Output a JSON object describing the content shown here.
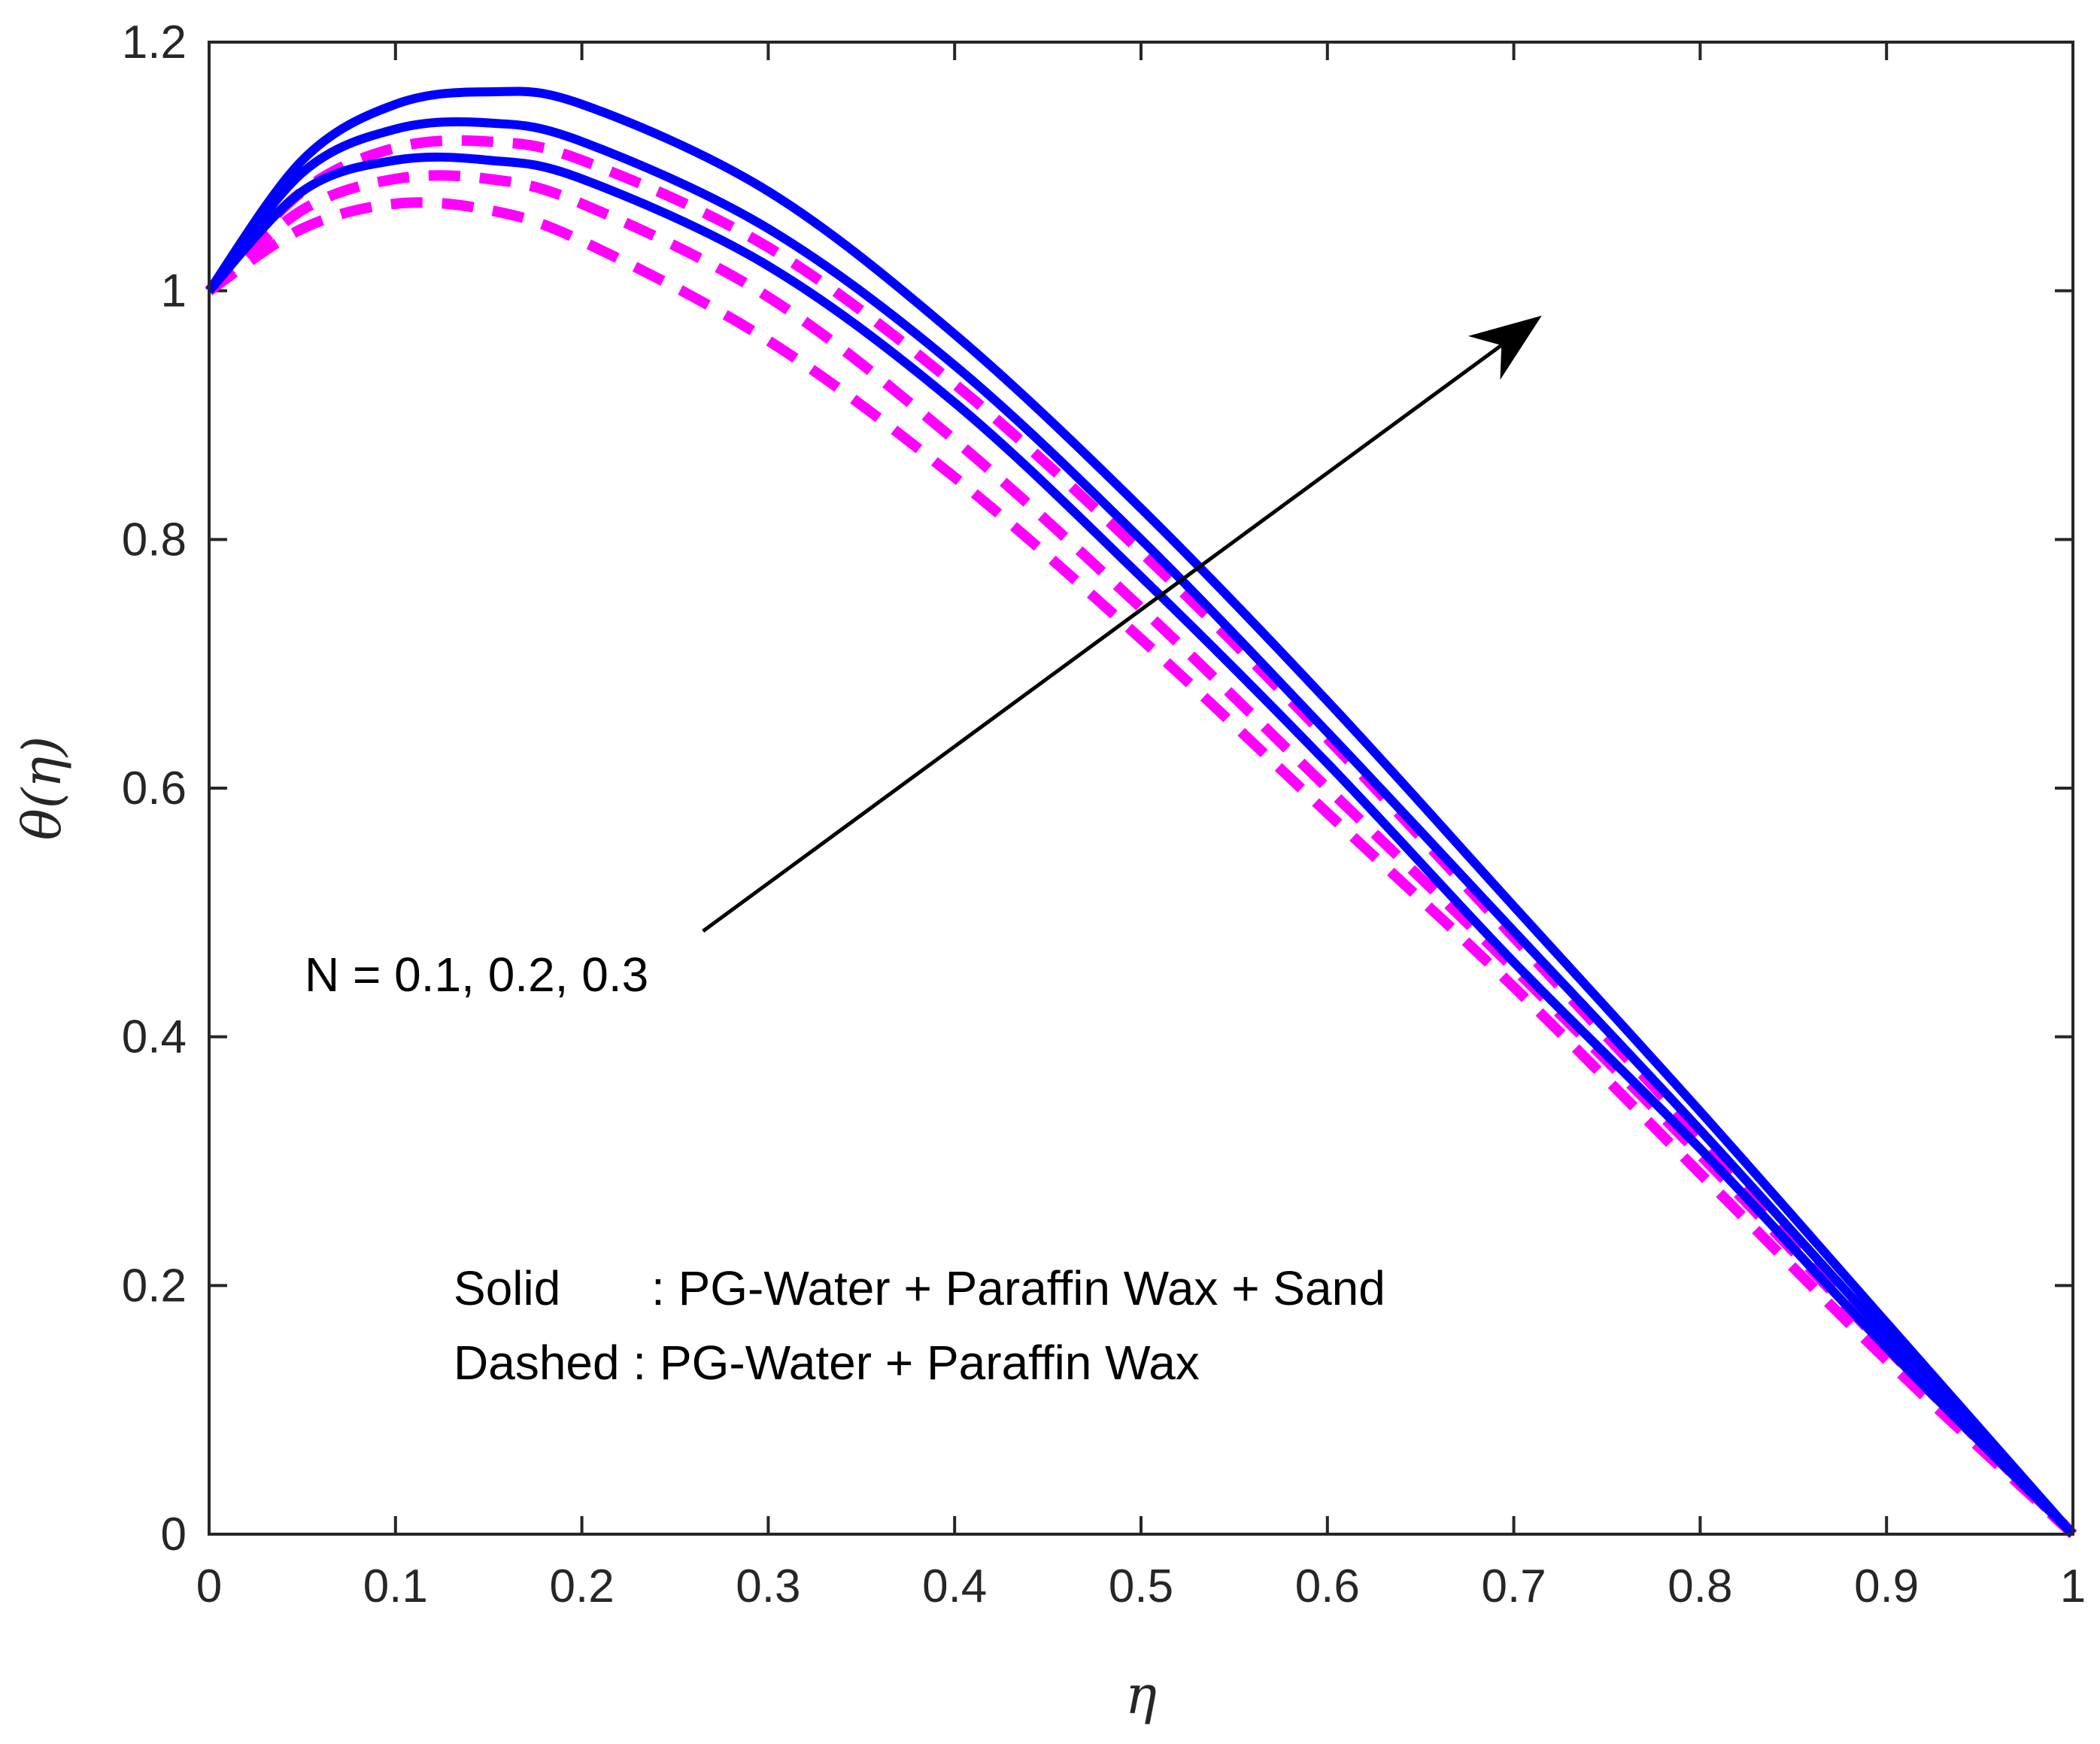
{
  "chart_data": {
    "type": "line",
    "title": "",
    "xlabel": "η",
    "ylabel": "θ(η)",
    "xlim": [
      0,
      1
    ],
    "ylim": [
      0,
      1.2
    ],
    "grid": false,
    "xticks": [
      0,
      0.1,
      0.2,
      0.3,
      0.4,
      0.5,
      0.6,
      0.7,
      0.8,
      0.9,
      1
    ],
    "xtick_labels": [
      "0",
      "0.1",
      "0.2",
      "0.3",
      "0.4",
      "0.5",
      "0.6",
      "0.7",
      "0.8",
      "0.9",
      "1"
    ],
    "yticks": [
      0,
      0.2,
      0.4,
      0.6,
      0.8,
      1,
      1.2
    ],
    "ytick_labels": [
      "0",
      "0.2",
      "0.4",
      "0.6",
      "0.8",
      "1",
      "1.2"
    ],
    "x": [
      0,
      0.05,
      0.1,
      0.15,
      0.2,
      0.3,
      0.4,
      0.5,
      0.6,
      0.7,
      0.8,
      0.9,
      1
    ],
    "series": [
      {
        "name": "Solid N=0.1",
        "style": "solid",
        "color": "#0000ff",
        "values": [
          1.0,
          1.08,
          1.105,
          1.105,
          1.09,
          1.02,
          0.91,
          0.77,
          0.62,
          0.46,
          0.31,
          0.15,
          0.0
        ]
      },
      {
        "name": "Solid N=0.2",
        "style": "solid",
        "color": "#0000ff",
        "values": [
          1.0,
          1.095,
          1.13,
          1.135,
          1.12,
          1.05,
          0.94,
          0.8,
          0.645,
          0.485,
          0.325,
          0.16,
          0.0
        ]
      },
      {
        "name": "Solid N=0.3",
        "style": "solid",
        "color": "#0000ff",
        "values": [
          1.0,
          1.105,
          1.15,
          1.16,
          1.15,
          1.08,
          0.965,
          0.825,
          0.67,
          0.505,
          0.34,
          0.17,
          0.0
        ]
      },
      {
        "name": "Dashed N=0.1",
        "style": "dashed",
        "color": "#ff00ff",
        "values": [
          1.0,
          1.05,
          1.07,
          1.065,
          1.04,
          0.96,
          0.85,
          0.72,
          0.58,
          0.44,
          0.29,
          0.14,
          0.0
        ]
      },
      {
        "name": "Dashed N=0.2",
        "style": "dashed",
        "color": "#ff00ff",
        "values": [
          1.0,
          1.065,
          1.09,
          1.09,
          1.07,
          0.995,
          0.88,
          0.745,
          0.6,
          0.455,
          0.305,
          0.15,
          0.0
        ]
      },
      {
        "name": "Dashed N=0.3",
        "style": "dashed",
        "color": "#ff00ff",
        "values": [
          1.0,
          1.08,
          1.115,
          1.12,
          1.105,
          1.035,
          0.925,
          0.79,
          0.64,
          0.48,
          0.32,
          0.16,
          0.0
        ]
      }
    ],
    "arrow": {
      "from": [
        0.265,
        0.485
      ],
      "to": [
        0.715,
        0.98
      ],
      "color": "#000000"
    },
    "annotations": {
      "param_label": "N = 0.1, 0.2, 0.3",
      "legend_solid_key": "Solid",
      "legend_solid_text": ": PG-Water + Paraffin Wax + Sand",
      "legend_dashed_text": "Dashed : PG-Water + Paraffin Wax"
    }
  }
}
